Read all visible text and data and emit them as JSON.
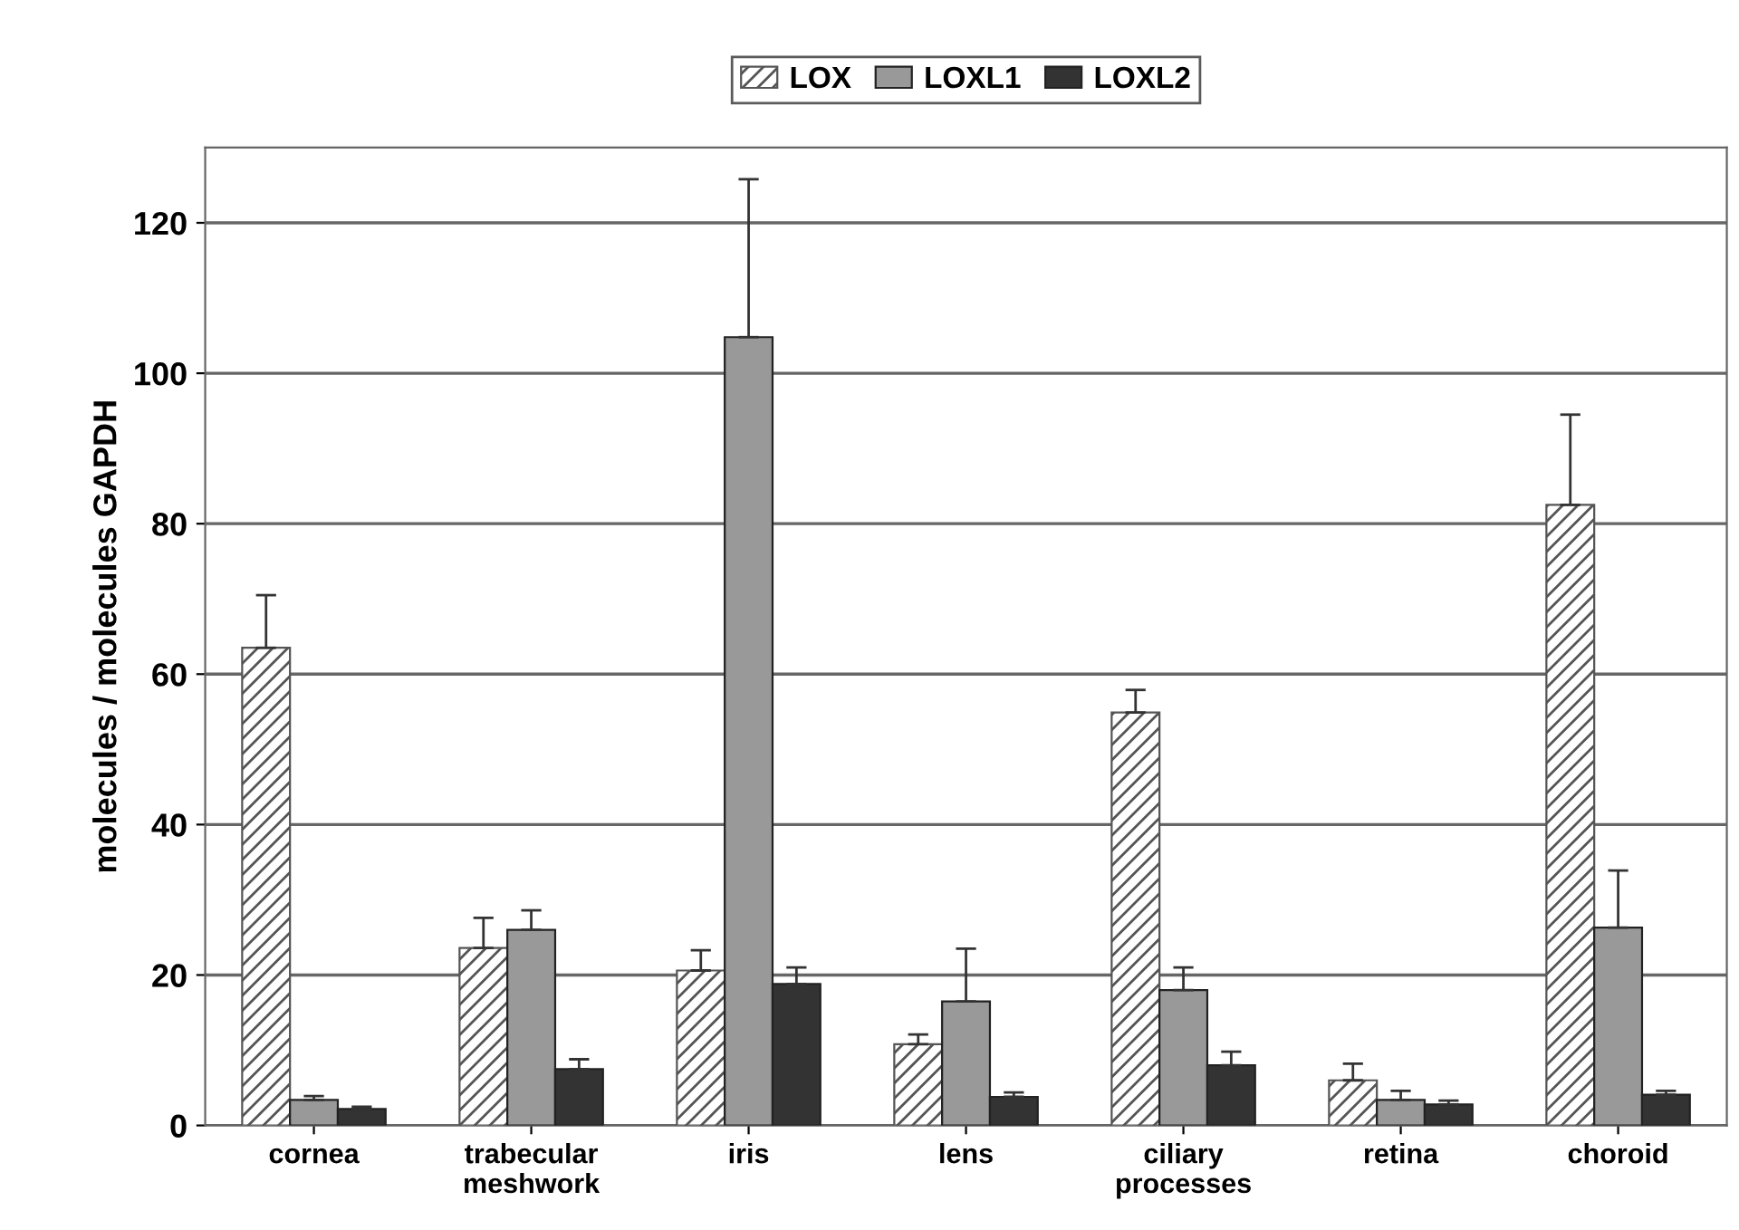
{
  "chart_data": {
    "type": "bar",
    "ylabel": "molecules / molecules GAPDH",
    "categories": [
      "cornea",
      "trabecular\nmeshwork",
      "iris",
      "lens",
      "ciliary\nprocesses",
      "retina",
      "choroid"
    ],
    "series": [
      {
        "name": "LOX",
        "color": "#555555",
        "values": [
          63.5,
          23.6,
          20.6,
          10.8,
          54.9,
          6,
          82.5
        ],
        "errors": [
          [
            63.5,
            70.5
          ],
          [
            23.6,
            27.6
          ],
          [
            20.6,
            23.3
          ],
          [
            10.8,
            12.1
          ],
          [
            54.9,
            57.9
          ],
          [
            6,
            8.2
          ],
          [
            82.5,
            94.5
          ]
        ]
      },
      {
        "name": "LOXL1",
        "color": "#999999",
        "values": [
          3.4,
          26,
          104.8,
          16.5,
          18,
          3.4,
          26.3
        ],
        "errors": [
          [
            3.4,
            3.9
          ],
          [
            26,
            28.6
          ],
          [
            104.8,
            125.8
          ],
          [
            16.5,
            23.5
          ],
          [
            18,
            21
          ],
          [
            3.4,
            4.6
          ],
          [
            26.3,
            33.9
          ]
        ]
      },
      {
        "name": "LOXL2",
        "color": "#333333",
        "values": [
          2.2,
          7.5,
          18.8,
          3.8,
          8,
          2.8,
          4.1
        ],
        "errors": [
          [
            2.2,
            2.5
          ],
          [
            7.5,
            8.8
          ],
          [
            18.8,
            21
          ],
          [
            3.8,
            4.4
          ],
          [
            8,
            9.8
          ],
          [
            2.8,
            3.3
          ],
          [
            4.1,
            4.6
          ]
        ]
      }
    ],
    "ylim": [
      0,
      130
    ],
    "yticks": [
      0,
      20,
      40,
      60,
      80,
      100,
      120
    ],
    "grid": "y",
    "legend": "top"
  }
}
